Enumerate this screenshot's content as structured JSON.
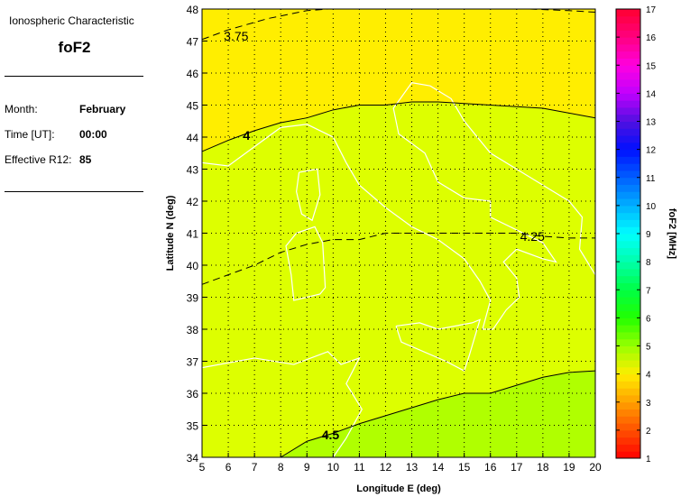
{
  "info": {
    "heading": "Ionospheric Characteristic",
    "characteristic": "foF2",
    "month_label": "Month:",
    "month": "February",
    "time_label": "Time [UT]:",
    "time": "00:00",
    "r12_label": "Effective R12:",
    "r12": "85"
  },
  "chart_data": {
    "type": "heatmap",
    "subtype": "contour map",
    "xlabel": "Longitude E (deg)",
    "ylabel": "Latitude N (deg)",
    "xlim": [
      5,
      20
    ],
    "ylim": [
      34,
      48
    ],
    "xticks": [
      5,
      6,
      7,
      8,
      9,
      10,
      11,
      12,
      13,
      14,
      15,
      16,
      17,
      18,
      19,
      20
    ],
    "yticks": [
      34,
      35,
      36,
      37,
      38,
      39,
      40,
      41,
      42,
      43,
      44,
      45,
      46,
      47,
      48
    ],
    "grid": true,
    "region_colors": {
      "above_4": "#ffee00",
      "between_4_and_4.5": "#ddff00",
      "below_4.5": "#b0ff00"
    },
    "coastline_color": "#ffffff",
    "contours": [
      {
        "level": "3.75",
        "style": "dashed",
        "label_at": [
          6.3,
          47.15
        ],
        "segments": [
          [
            [
              5,
              47.05
            ],
            [
              6,
              47.35
            ],
            [
              7.5,
              47.7
            ],
            [
              9,
              47.95
            ],
            [
              9.8,
              48
            ]
          ],
          [
            [
              17.5,
              48
            ],
            [
              19,
              47.95
            ],
            [
              20,
              47.9
            ]
          ]
        ]
      },
      {
        "level": "4",
        "style": "solid",
        "label_at": [
          6.7,
          44.05
        ],
        "segments": [
          [
            [
              5,
              43.55
            ],
            [
              6,
              43.9
            ],
            [
              7,
              44.2
            ],
            [
              8,
              44.45
            ],
            [
              9,
              44.6
            ],
            [
              10,
              44.85
            ],
            [
              11,
              45
            ],
            [
              12,
              45
            ],
            [
              13,
              45.1
            ],
            [
              14,
              45.1
            ],
            [
              15,
              45.05
            ],
            [
              16,
              45
            ],
            [
              17,
              44.95
            ],
            [
              18,
              44.9
            ],
            [
              19,
              44.75
            ],
            [
              20,
              44.6
            ]
          ]
        ]
      },
      {
        "level": "4.25",
        "style": "dashed",
        "label_at": [
          17.6,
          40.9
        ],
        "segments": [
          [
            [
              5,
              39.4
            ],
            [
              6,
              39.7
            ],
            [
              7,
              40
            ],
            [
              8,
              40.4
            ],
            [
              9,
              40.65
            ],
            [
              10,
              40.8
            ],
            [
              11,
              40.8
            ],
            [
              12,
              41
            ],
            [
              13,
              41
            ],
            [
              14,
              41
            ],
            [
              15,
              41
            ],
            [
              16,
              41
            ],
            [
              17,
              41
            ],
            [
              18,
              40.9
            ],
            [
              19,
              40.85
            ],
            [
              20,
              40.85
            ]
          ]
        ]
      },
      {
        "level": "4.5",
        "style": "solid",
        "label_at": [
          9.9,
          34.7
        ],
        "segments": [
          [
            [
              8,
              34
            ],
            [
              9,
              34.5
            ],
            [
              10,
              34.75
            ],
            [
              11,
              35.05
            ],
            [
              12,
              35.3
            ],
            [
              13,
              35.55
            ],
            [
              14,
              35.8
            ],
            [
              15,
              36
            ],
            [
              16,
              36
            ],
            [
              17,
              36.25
            ],
            [
              18,
              36.5
            ],
            [
              19,
              36.65
            ],
            [
              20,
              36.7
            ]
          ]
        ]
      }
    ],
    "colorbar": {
      "label": "foF2 [MHz]",
      "range": [
        1,
        17
      ],
      "ticks": [
        1,
        2,
        3,
        4,
        5,
        6,
        7,
        8,
        9,
        10,
        11,
        12,
        13,
        14,
        15,
        16,
        17
      ],
      "stops": [
        "#ff0000",
        "#ff5000",
        "#ffa000",
        "#ffee00",
        "#99ff00",
        "#22ff00",
        "#00ff44",
        "#00ffaa",
        "#00ffff",
        "#00b0ff",
        "#0060ff",
        "#0010ff",
        "#5010e0",
        "#c000ff",
        "#ff00e0",
        "#ff0080",
        "#ff0030"
      ]
    }
  }
}
